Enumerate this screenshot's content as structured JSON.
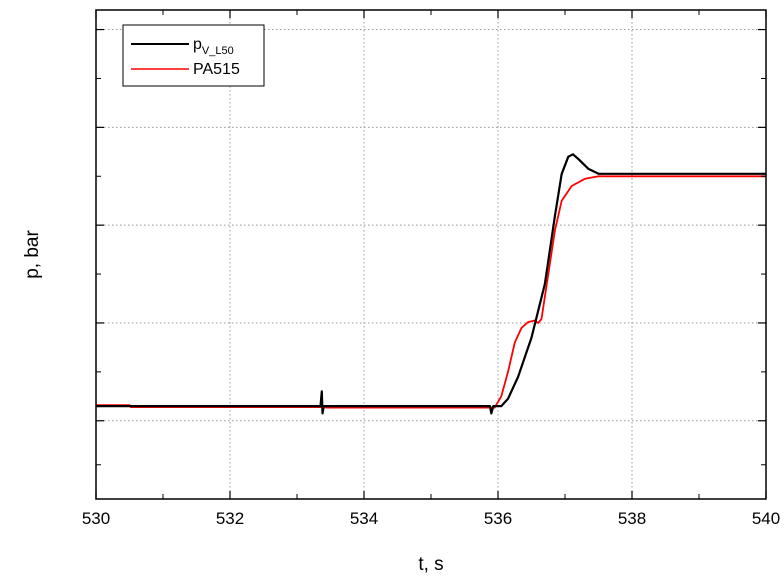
{
  "chart_data": {
    "type": "line",
    "xlabel": "t, s",
    "ylabel": "p, bar",
    "xlim": [
      530,
      540
    ],
    "ylim": [
      0,
      10
    ],
    "x_ticks": [
      530,
      532,
      534,
      536,
      538,
      540
    ],
    "y_ticks_major": [
      1.6,
      3.6,
      5.6,
      7.6,
      9.6
    ],
    "y_ticks_minor": [
      0.7,
      2.6,
      4.6,
      6.6,
      8.6
    ],
    "grid": true,
    "legend_position": "top-left",
    "series": [
      {
        "name": "p",
        "name_subscript": "V_L50",
        "color": "#000000",
        "points": [
          [
            530.0,
            1.9
          ],
          [
            533.35,
            1.9
          ],
          [
            533.37,
            2.2
          ],
          [
            533.38,
            1.75
          ],
          [
            533.4,
            1.9
          ],
          [
            535.88,
            1.9
          ],
          [
            535.9,
            1.75
          ],
          [
            535.93,
            1.9
          ],
          [
            536.05,
            1.9
          ],
          [
            536.15,
            2.05
          ],
          [
            536.3,
            2.5
          ],
          [
            536.5,
            3.3
          ],
          [
            536.7,
            4.4
          ],
          [
            536.85,
            5.8
          ],
          [
            536.95,
            6.65
          ],
          [
            537.05,
            7.0
          ],
          [
            537.12,
            7.05
          ],
          [
            537.2,
            6.95
          ],
          [
            537.35,
            6.75
          ],
          [
            537.5,
            6.65
          ],
          [
            540.0,
            6.65
          ]
        ]
      },
      {
        "name": "PA515",
        "color": "#ff0000",
        "points": [
          [
            530.0,
            1.92
          ],
          [
            530.5,
            1.92
          ],
          [
            530.52,
            1.88
          ],
          [
            533.35,
            1.88
          ],
          [
            533.45,
            1.87
          ],
          [
            535.95,
            1.87
          ],
          [
            536.05,
            2.1
          ],
          [
            536.15,
            2.6
          ],
          [
            536.25,
            3.2
          ],
          [
            536.35,
            3.5
          ],
          [
            536.45,
            3.62
          ],
          [
            536.55,
            3.65
          ],
          [
            536.6,
            3.6
          ],
          [
            536.65,
            3.68
          ],
          [
            536.75,
            4.6
          ],
          [
            536.85,
            5.5
          ],
          [
            536.95,
            6.1
          ],
          [
            537.1,
            6.4
          ],
          [
            537.3,
            6.55
          ],
          [
            537.5,
            6.6
          ],
          [
            540.0,
            6.6
          ]
        ]
      }
    ]
  }
}
